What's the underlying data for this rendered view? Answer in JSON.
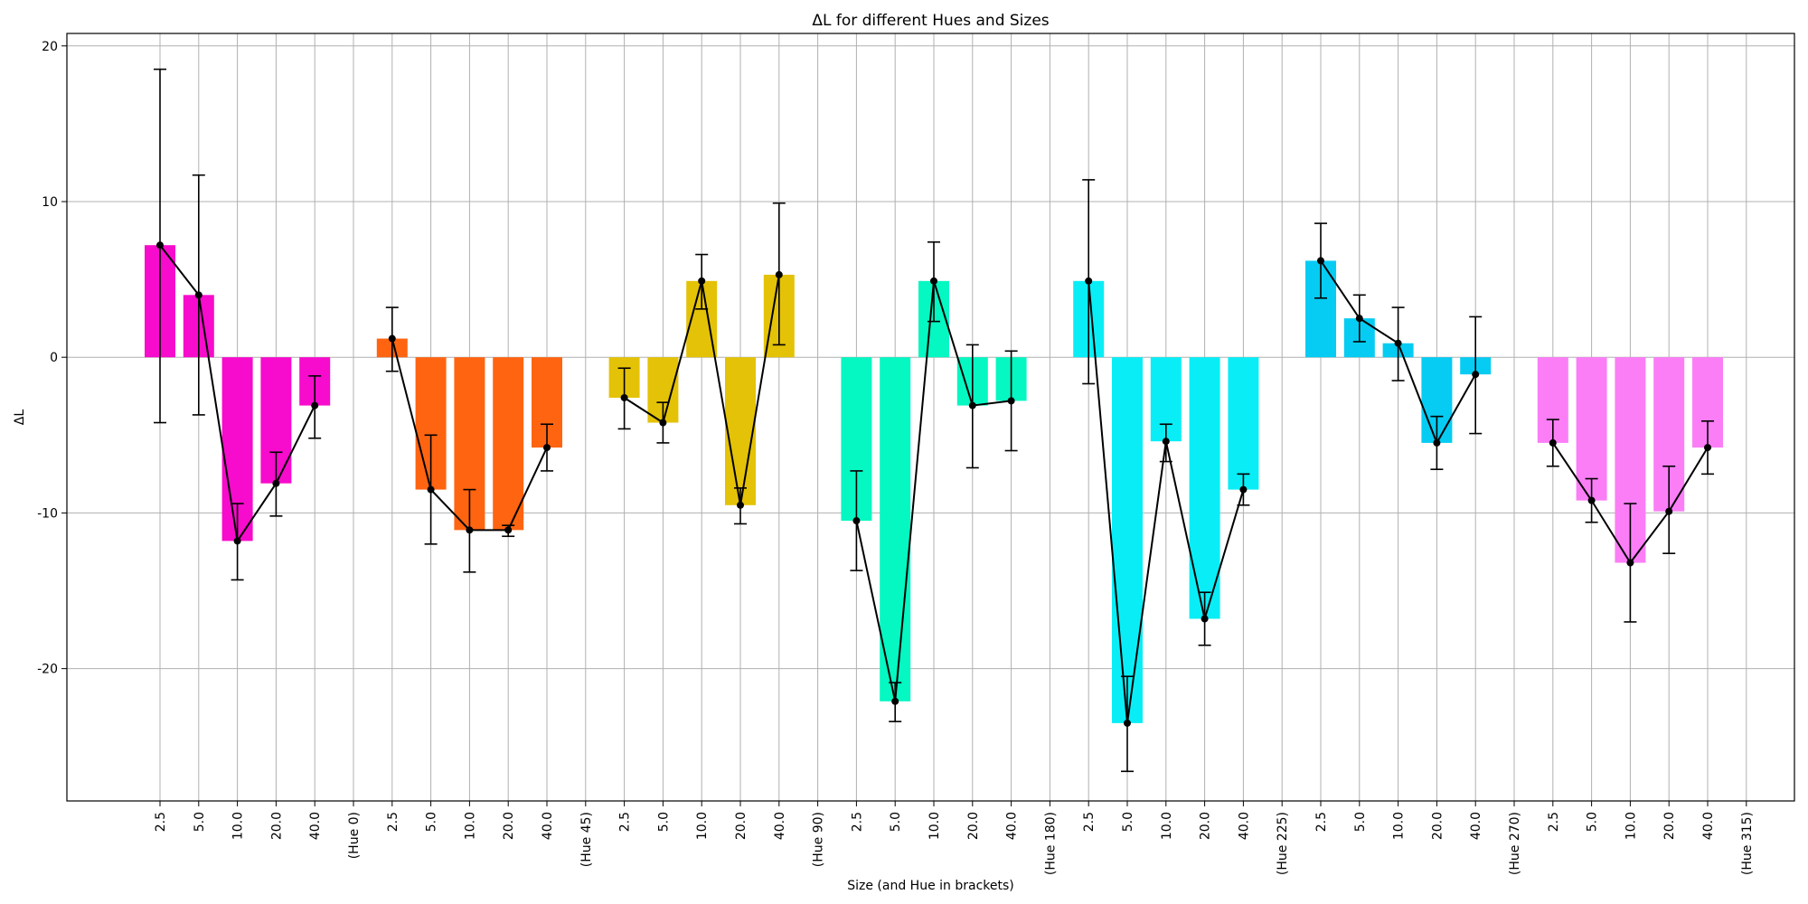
{
  "chart_data": {
    "type": "bar",
    "title": "ΔL for different Hues and Sizes",
    "xlabel": "Size (and Hue in brackets)",
    "ylabel": "ΔL",
    "ylim": [
      -28.5,
      20.8
    ],
    "yticks": [
      -20,
      -10,
      0,
      10,
      20
    ],
    "grid": true,
    "sizes": [
      "2.5",
      "5.0",
      "10.0",
      "20.0",
      "40.0"
    ],
    "groups": [
      {
        "hue_label": "(Hue 0)",
        "color": "#f70bcc",
        "values": [
          7.2,
          4.0,
          -11.8,
          -8.1,
          -3.1
        ],
        "error_low": [
          -4.2,
          -3.7,
          -14.3,
          -10.2,
          -5.2
        ],
        "error_high": [
          18.5,
          11.7,
          -9.4,
          -6.1,
          -1.2
        ]
      },
      {
        "hue_label": "(Hue 45)",
        "color": "#ff6411",
        "values": [
          1.2,
          -8.5,
          -11.1,
          -11.1,
          -5.8
        ],
        "error_low": [
          -0.9,
          -12.0,
          -13.8,
          -11.5,
          -7.3
        ],
        "error_high": [
          3.2,
          -5.0,
          -8.5,
          -10.8,
          -4.3
        ]
      },
      {
        "hue_label": "(Hue 90)",
        "color": "#e4c207",
        "values": [
          -2.6,
          -4.2,
          4.9,
          -9.5,
          5.3
        ],
        "error_low": [
          -4.6,
          -5.5,
          3.1,
          -10.7,
          0.8
        ],
        "error_high": [
          -0.7,
          -2.9,
          6.6,
          -8.4,
          9.9
        ]
      },
      {
        "hue_label": "(Hue 180)",
        "color": "#05f7c2",
        "values": [
          -10.5,
          -22.1,
          4.9,
          -3.1,
          -2.8
        ],
        "error_low": [
          -13.7,
          -23.4,
          2.3,
          -7.1,
          -6.0
        ],
        "error_high": [
          -7.3,
          -20.9,
          7.4,
          0.8,
          0.4
        ]
      },
      {
        "hue_label": "(Hue 225)",
        "color": "#09eef6",
        "values": [
          4.9,
          -23.5,
          -5.4,
          -16.8,
          -8.5
        ],
        "error_low": [
          -1.7,
          -26.6,
          -6.7,
          -18.5,
          -9.5
        ],
        "error_high": [
          11.4,
          -20.5,
          -4.3,
          -15.1,
          -7.5
        ]
      },
      {
        "hue_label": "(Hue 270)",
        "color": "#06ccf3",
        "values": [
          6.2,
          2.5,
          0.9,
          -5.5,
          -1.1
        ],
        "error_low": [
          3.8,
          1.0,
          -1.5,
          -7.2,
          -4.9
        ],
        "error_high": [
          8.6,
          4.0,
          3.2,
          -3.8,
          2.6
        ]
      },
      {
        "hue_label": "(Hue 315)",
        "color": "#fb7ef7",
        "values": [
          -5.5,
          -9.2,
          -13.2,
          -9.9,
          -5.8
        ],
        "error_low": [
          -7.0,
          -10.6,
          -17.0,
          -12.6,
          -7.5
        ],
        "error_high": [
          -4.0,
          -7.8,
          -9.4,
          -7.0,
          -4.1
        ]
      }
    ]
  }
}
